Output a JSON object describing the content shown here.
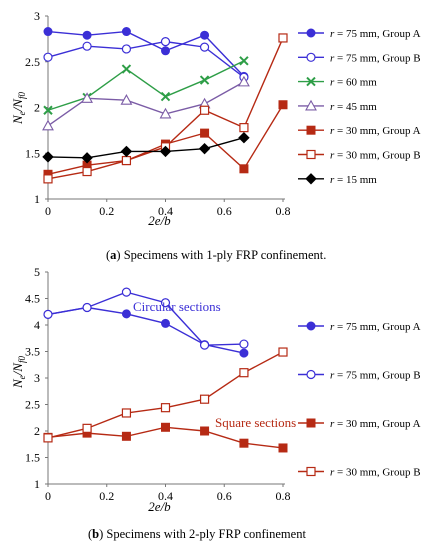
{
  "chart_data": [
    {
      "type": "line",
      "caption": {
        "label": "(a)",
        "text": "Specimens with 1-ply FRP confinement."
      },
      "xlabel": "2e/b",
      "ylabel": "Ne/Nf0",
      "xlim": [
        0,
        0.8
      ],
      "ylim": [
        1,
        3
      ],
      "xticks": [
        "0",
        "0.2",
        "0.4",
        "0.6",
        "0.8"
      ],
      "yticks": [
        "1",
        "1.5",
        "2",
        "2.5",
        "3"
      ],
      "grid": false,
      "legend_position": "right",
      "series": [
        {
          "name": "r = 75 mm, Group A",
          "color": "#3b2fd6",
          "marker": "circle-filled",
          "x": [
            0,
            0.133,
            0.267,
            0.4,
            0.533,
            0.667
          ],
          "values": [
            2.83,
            2.79,
            2.83,
            2.62,
            2.79,
            2.34
          ]
        },
        {
          "name": "r = 75 mm, Group B",
          "color": "#3b2fd6",
          "marker": "circle-open",
          "x": [
            0,
            0.133,
            0.267,
            0.4,
            0.533,
            0.667
          ],
          "values": [
            2.55,
            2.67,
            2.64,
            2.72,
            2.66,
            2.33
          ]
        },
        {
          "name": "r = 60 mm",
          "color": "#2e9e47",
          "marker": "x",
          "x": [
            0,
            0.133,
            0.267,
            0.4,
            0.533,
            0.667
          ],
          "values": [
            1.97,
            2.11,
            2.42,
            2.12,
            2.3,
            2.51
          ]
        },
        {
          "name": "r = 45 mm",
          "color": "#7b5ca6",
          "marker": "triangle-open",
          "x": [
            0,
            0.133,
            0.267,
            0.4,
            0.533,
            0.667
          ],
          "values": [
            1.8,
            2.1,
            2.08,
            1.93,
            2.04,
            2.28
          ]
        },
        {
          "name": "r = 30 mm, Group A",
          "color": "#b62a14",
          "marker": "square-filled",
          "x": [
            0,
            0.133,
            0.267,
            0.4,
            0.533,
            0.667,
            0.8
          ],
          "values": [
            1.27,
            1.37,
            1.42,
            1.6,
            1.72,
            1.33,
            2.03
          ]
        },
        {
          "name": "r = 30 mm, Group B",
          "color": "#b62a14",
          "marker": "square-open",
          "x": [
            0,
            0.133,
            0.267,
            0.4,
            0.533,
            0.667,
            0.8
          ],
          "values": [
            1.22,
            1.3,
            1.42,
            1.57,
            1.97,
            1.78,
            2.76
          ]
        },
        {
          "name": "r = 15 mm",
          "color": "#000000",
          "marker": "diamond-filled",
          "x": [
            0,
            0.133,
            0.267,
            0.4,
            0.533,
            0.667
          ],
          "values": [
            1.46,
            1.45,
            1.52,
            1.52,
            1.55,
            1.67
          ]
        }
      ]
    },
    {
      "type": "line",
      "caption": {
        "label": "(b)",
        "text": "Specimens with 2-ply FRP confinement"
      },
      "xlabel": "2e/b",
      "ylabel": "Ne/Nf0",
      "xlim": [
        0,
        0.8
      ],
      "ylim": [
        1,
        5
      ],
      "xticks": [
        "0",
        "0.2",
        "0.4",
        "0.6",
        "0.8"
      ],
      "yticks": [
        "1",
        "1.5",
        "2",
        "2.5",
        "3",
        "3.5",
        "4",
        "4.5",
        "5"
      ],
      "grid": false,
      "legend_position": "right",
      "annotations": [
        {
          "text": "Circular sections",
          "color": "#3b2fd6"
        },
        {
          "text": "Square sections",
          "color": "#b62a14"
        }
      ],
      "series": [
        {
          "name": "r = 75 mm, Group A",
          "color": "#3b2fd6",
          "marker": "circle-filled",
          "x": [
            0,
            0.133,
            0.267,
            0.4,
            0.533,
            0.667
          ],
          "values": [
            4.2,
            4.33,
            4.21,
            4.03,
            3.63,
            3.47
          ]
        },
        {
          "name": "r = 75 mm, Group B",
          "color": "#3b2fd6",
          "marker": "circle-open",
          "x": [
            0,
            0.133,
            0.267,
            0.4,
            0.533,
            0.667
          ],
          "values": [
            4.2,
            4.33,
            4.62,
            4.42,
            3.62,
            3.64
          ]
        },
        {
          "name": "r = 30 mm, Group A",
          "color": "#b62a14",
          "marker": "square-filled",
          "x": [
            0,
            0.133,
            0.267,
            0.4,
            0.533,
            0.667,
            0.8
          ],
          "values": [
            1.88,
            1.96,
            1.9,
            2.07,
            2.0,
            1.77,
            1.68
          ]
        },
        {
          "name": "r = 30 mm, Group B",
          "color": "#b62a14",
          "marker": "square-open",
          "x": [
            0,
            0.133,
            0.267,
            0.4,
            0.533,
            0.667,
            0.8
          ],
          "values": [
            1.87,
            2.05,
            2.34,
            2.44,
            2.6,
            3.1,
            3.49
          ]
        }
      ]
    }
  ]
}
